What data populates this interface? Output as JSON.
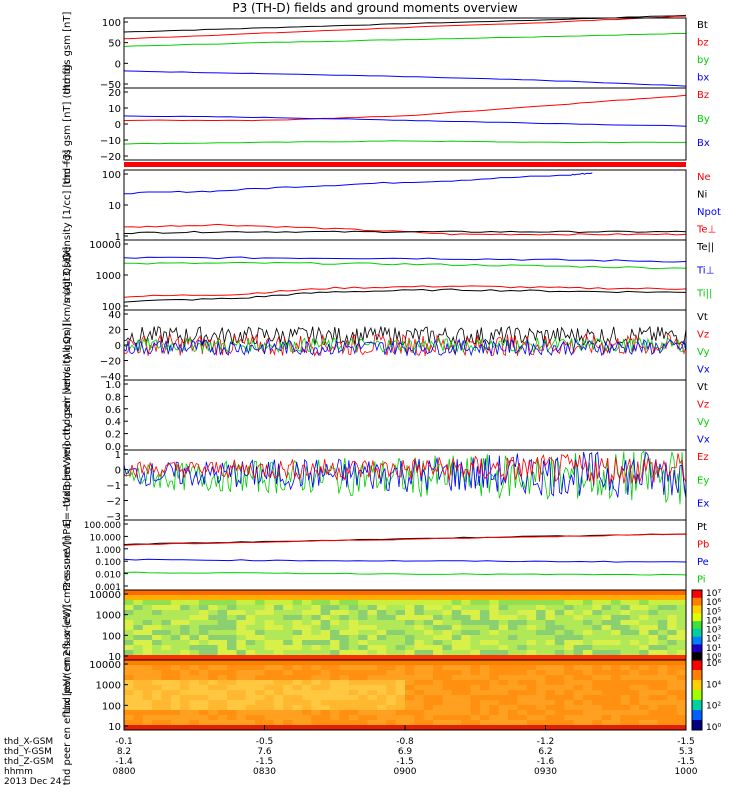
{
  "title": "P3 (TH-D) fields and ground moments overview",
  "colors": {
    "black": "#000000",
    "red": "#ff0000",
    "green": "#00d000",
    "blue": "#0000ff"
  },
  "chart_data": [
    {
      "type": "line",
      "ylabel": "thd fgs gsm [nT]",
      "ticks": [
        "100",
        "50",
        "0",
        "−50"
      ],
      "legend": [
        {
          "name": "Bt",
          "color": "black"
        },
        {
          "name": "bz",
          "color": "red"
        },
        {
          "name": "by",
          "color": "green"
        },
        {
          "name": "bx",
          "color": "blue"
        }
      ],
      "ylim": [
        -80,
        105
      ],
      "series": [
        {
          "name": "Bt",
          "color": "black",
          "x": [
            0,
            30,
            60,
            90,
            120
          ],
          "y": [
            68,
            79,
            90,
            100,
            112
          ]
        },
        {
          "name": "bz",
          "color": "red",
          "x": [
            0,
            30,
            60,
            90,
            120
          ],
          "y": [
            50,
            65,
            80,
            93,
            110
          ]
        },
        {
          "name": "by",
          "color": "green",
          "x": [
            0,
            30,
            60,
            90,
            120
          ],
          "y": [
            30,
            40,
            48,
            56,
            64
          ]
        },
        {
          "name": "bx",
          "color": "blue",
          "x": [
            0,
            30,
            60,
            90,
            120
          ],
          "y": [
            -35,
            -42,
            -50,
            -60,
            -75
          ]
        }
      ]
    },
    {
      "type": "line",
      "ylabel": "thd fgs gsm [nT] (dtrnd)",
      "ticks": [
        "20",
        "10",
        "0",
        "−10",
        "−20"
      ],
      "legend": [
        {
          "name": "Bz",
          "color": "red"
        },
        {
          "name": "By",
          "color": "green"
        },
        {
          "name": "Bx",
          "color": "blue"
        }
      ],
      "ylim": [
        -27,
        22
      ],
      "series": [
        {
          "name": "Bz",
          "color": "red",
          "x": [
            0,
            30,
            60,
            90,
            120
          ],
          "y": [
            0,
            0,
            3,
            10,
            17
          ]
        },
        {
          "name": "By",
          "color": "green",
          "x": [
            0,
            30,
            60,
            90,
            120
          ],
          "y": [
            -16,
            -15,
            -14,
            -15,
            -15
          ]
        },
        {
          "name": "Bx",
          "color": "blue",
          "x": [
            0,
            30,
            60,
            90,
            120
          ],
          "y": [
            3,
            2,
            0,
            -2,
            -4
          ]
        }
      ]
    },
    {
      "type": "line",
      "ylabel": "Density [1/cc] [cm−3]",
      "log": true,
      "ticks": [
        "100",
        "10",
        "1"
      ],
      "legend": [
        {
          "name": "Ne",
          "color": "red"
        },
        {
          "name": "Ni",
          "color": "black"
        },
        {
          "name": "Npot",
          "color": "blue"
        },
        {
          "name": "Te⊥",
          "color": "red"
        }
      ],
      "ylim": [
        0.2,
        200
      ],
      "series": [
        {
          "name": "Npot",
          "color": "blue",
          "x": [
            0,
            20,
            45,
            70,
            95,
            100
          ],
          "y": [
            20,
            25,
            45,
            70,
            120,
            150
          ]
        },
        {
          "name": "Ne",
          "color": "red",
          "x": [
            0,
            20,
            45,
            70,
            95,
            120
          ],
          "y": [
            0.7,
            0.9,
            0.6,
            0.35,
            0.35,
            0.35
          ]
        },
        {
          "name": "Ni",
          "color": "black",
          "x": [
            0,
            20,
            45,
            70,
            95,
            120
          ],
          "y": [
            0.4,
            0.45,
            0.45,
            0.45,
            0.45,
            0.45
          ]
        }
      ]
    },
    {
      "type": "line",
      "ylabel": "magt3 [eV]",
      "log": true,
      "ticks": [
        "10000",
        "1000",
        "100"
      ],
      "legend": [
        {
          "name": "Te||",
          "color": "black"
        },
        {
          "name": "Ti⊥",
          "color": "blue"
        },
        {
          "name": "Ti||",
          "color": "green"
        }
      ],
      "ylim": [
        50,
        15000
      ],
      "series": [
        {
          "name": "Ti⊥",
          "color": "blue",
          "x": [
            0,
            30,
            60,
            90,
            120
          ],
          "y": [
            3500,
            3500,
            3400,
            3000,
            2600
          ]
        },
        {
          "name": "Ti||",
          "color": "green",
          "x": [
            0,
            30,
            60,
            90,
            120
          ],
          "y": [
            2200,
            2300,
            2100,
            1800,
            1500
          ]
        },
        {
          "name": "Te⊥",
          "color": "red",
          "x": [
            0,
            25,
            45,
            70,
            95,
            120
          ],
          "y": [
            150,
            180,
            300,
            350,
            300,
            280
          ]
        },
        {
          "name": "Te||",
          "color": "black",
          "x": [
            0,
            25,
            45,
            70,
            95,
            120
          ],
          "y": [
            100,
            130,
            220,
            260,
            230,
            210
          ]
        }
      ]
    },
    {
      "type": "line",
      "ylabel": "thd peir velocity gsm [km/s (All Qs)]",
      "ticks": [
        "40",
        "20",
        "0",
        "−20",
        "−40"
      ],
      "legend": [
        {
          "name": "Vt",
          "color": "black"
        },
        {
          "name": "Vz",
          "color": "red"
        },
        {
          "name": "Vy",
          "color": "green"
        },
        {
          "name": "Vx",
          "color": "blue"
        }
      ],
      "ylim": [
        -45,
        45
      ],
      "series": []
    },
    {
      "type": "line",
      "ylabel": "thd peer velocity gsm [km/s (All Qs)]",
      "ticks": [
        "1.0",
        "0.8",
        "0.6",
        "0.4",
        "0.2",
        "0.0"
      ],
      "legend": [
        {
          "name": "Vt",
          "color": "black"
        },
        {
          "name": "Vz",
          "color": "red"
        },
        {
          "name": "Vy",
          "color": "green"
        },
        {
          "name": "Vx",
          "color": "blue"
        }
      ],
      "ylim": [
        0,
        1
      ],
      "series": []
    },
    {
      "type": "line",
      "ylabel": "E=−VxB [mV/m]",
      "ticks": [
        "1",
        "0",
        "−1",
        "−2",
        "−3"
      ],
      "legend": [
        {
          "name": "Ez",
          "color": "red"
        },
        {
          "name": "Ey",
          "color": "green"
        },
        {
          "name": "Ex",
          "color": "blue"
        }
      ],
      "ylim": [
        -4,
        1.5
      ],
      "series": []
    },
    {
      "type": "line",
      "ylabel": "Pressure [nPa]",
      "log": true,
      "ticks": [
        "100.000",
        "10.000",
        "1.000",
        "0.100",
        "0.010",
        "0.001"
      ],
      "legend": [
        {
          "name": "Pt",
          "color": "black"
        },
        {
          "name": "Pb",
          "color": "red"
        },
        {
          "name": "Pe",
          "color": "blue"
        },
        {
          "name": "Pi",
          "color": "green"
        }
      ],
      "ylim": [
        0.001,
        100
      ],
      "series": [
        {
          "name": "Pt",
          "color": "black",
          "x": [
            0,
            30,
            60,
            90,
            120
          ],
          "y": [
            1.8,
            2.8,
            4.5,
            7,
            10
          ]
        },
        {
          "name": "Pb",
          "color": "red",
          "x": [
            0,
            30,
            60,
            90,
            120
          ],
          "y": [
            1.6,
            2.6,
            4.2,
            6.5,
            9.5
          ]
        },
        {
          "name": "Pe",
          "color": "blue",
          "x": [
            0,
            30,
            60,
            90,
            120
          ],
          "y": [
            0.15,
            0.13,
            0.12,
            0.11,
            0.1
          ]
        },
        {
          "name": "Pi",
          "color": "green",
          "x": [
            0,
            30,
            60,
            90,
            120
          ],
          "y": [
            0.018,
            0.016,
            0.014,
            0.013,
            0.012
          ]
        }
      ]
    },
    {
      "type": "heatmap",
      "ylabel": "thd peir en eflux [eV/(cm2-s-sr-eV)]",
      "ticks": [
        "10000",
        "1000",
        "100",
        "10"
      ],
      "colorbar": [
        "10⁷",
        "10⁶",
        "10⁵",
        "10⁴",
        "10³",
        "10²",
        "10¹",
        "10⁰"
      ]
    },
    {
      "type": "heatmap",
      "ylabel": "thd peer en eflux [eV/(cm2-s-sr-eV)]",
      "ticks": [
        "10000",
        "1000",
        "100",
        "10"
      ],
      "colorbar": [
        "10⁶",
        "10⁴",
        "10²",
        "10⁰"
      ]
    }
  ],
  "xaxis": {
    "rows": [
      {
        "label": "thd_X-GSM",
        "values": [
          "-0.1",
          "-0.5",
          "-0.8",
          "-1.2",
          "-1.5"
        ]
      },
      {
        "label": "thd_Y-GSM",
        "values": [
          "8.2",
          "7.6",
          "6.9",
          "6.2",
          "5.3"
        ]
      },
      {
        "label": "thd_Z-GSM",
        "values": [
          "-1.4",
          "-1.5",
          "-1.5",
          "-1.6",
          "-1.5"
        ]
      },
      {
        "label": "hhmm",
        "values": [
          "0800",
          "0830",
          "0900",
          "0930",
          "1000"
        ]
      }
    ],
    "date": "2013 Dec 24"
  }
}
